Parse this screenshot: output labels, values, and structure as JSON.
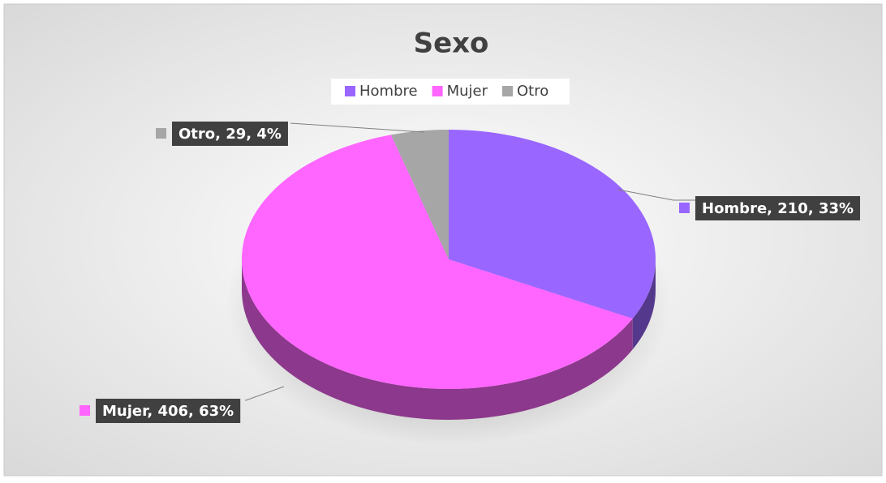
{
  "chart_data": {
    "type": "pie",
    "title": "Sexo",
    "categories": [
      "Hombre",
      "Mujer",
      "Otro"
    ],
    "values": [
      210,
      406,
      29
    ],
    "value_labels": [
      "Hombre, 210, 33%",
      "Mujer, 406, 63%",
      "Otro, 29, 4%"
    ],
    "colors": [
      "#9966ff",
      "#ff66ff",
      "#a6a6a6"
    ],
    "legend": "top"
  }
}
